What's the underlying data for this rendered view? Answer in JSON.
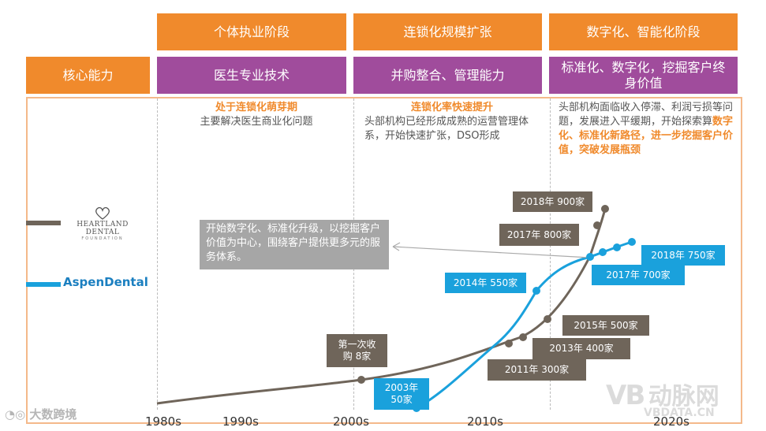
{
  "stages": [
    {
      "name": "个体执业阶段",
      "capability": "医生专业技术"
    },
    {
      "name": "连锁化规模扩张",
      "capability": "并购整合、管理能力"
    },
    {
      "name": "数字化、智能化阶段",
      "capability": "标准化、数字化，挖掘客户终身价值"
    }
  ],
  "core_label": "核心能力",
  "phase_desc": {
    "p1_title": "处于连锁化萌芽期",
    "p1_text": "主要解决医生商业化问题",
    "p2_title": "连锁化率快速提升",
    "p2_text": "头部机构已经形成成熟的运营管理体系，开始快速扩张，DSO形成",
    "p3_text_a": "头部机构面临收入停滞、利润亏损等问题，发展进入平缓期，开始探索算",
    "p3_highlight": "数字化、标准化新路径，进一步挖掘客户价值，突破发展瓶颈"
  },
  "callout": "开始数字化、标准化升级，以挖掘客户价值为中心，围绕客户提供更多元的服务体系。",
  "brands": {
    "heartland_name": "HEARTLAND DENTAL",
    "heartland_sub": "FOUNDATION",
    "aspen": "AspenDental"
  },
  "watermarks": {
    "left": "大数跨境",
    "right": "动脉网",
    "right_url": "VBDATA.CN"
  },
  "colors": {
    "orange": "#f08a2c",
    "purple": "#a04c9c",
    "heartland": "#6f655a",
    "aspen": "#1aa1dc"
  },
  "chart_data": {
    "type": "line",
    "x_ticks": [
      "1980s",
      "1990s",
      "2000s",
      "2010s",
      "2020s"
    ],
    "series": [
      {
        "name": "HEARTLAND DENTAL",
        "color": "#6f655a",
        "points": [
          {
            "label": "第一次收购 8家"
          },
          {
            "label": "2011年 300家"
          },
          {
            "label": "2013年 400家"
          },
          {
            "label": "2015年 500家"
          },
          {
            "label": "2017年 800家"
          },
          {
            "label": "2018年 900家"
          }
        ]
      },
      {
        "name": "AspenDental",
        "color": "#1aa1dc",
        "points": [
          {
            "label": "2003年 50家"
          },
          {
            "label": "2014年 550家"
          },
          {
            "label": "2017年 700家"
          },
          {
            "label": "2018年 750家"
          }
        ]
      }
    ]
  }
}
